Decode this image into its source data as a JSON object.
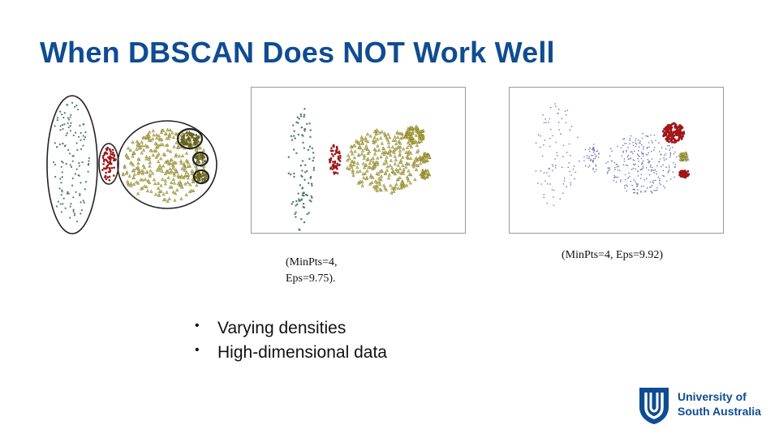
{
  "slide": {
    "title": "When DBSCAN Does NOT Work Well"
  },
  "figures": {
    "caption_1_line_1": "(MinPts=4,",
    "caption_1_line_2": "Eps=9.75).",
    "caption_2": "(MinPts=4, Eps=9.92)"
  },
  "bullets": [
    "Varying densities",
    "High-dimensional data"
  ],
  "logo": {
    "line_1": "University of",
    "line_2": "South Australia"
  },
  "colors": {
    "title": "#0f4c92",
    "cluster_green": "#4c7f6a",
    "cluster_red": "#a0161b",
    "cluster_yellow": "#c9c25a",
    "noise_blue": "#6f72b8"
  },
  "icons": [
    "university-shield-icon",
    "bullet-dot-icon"
  ]
}
